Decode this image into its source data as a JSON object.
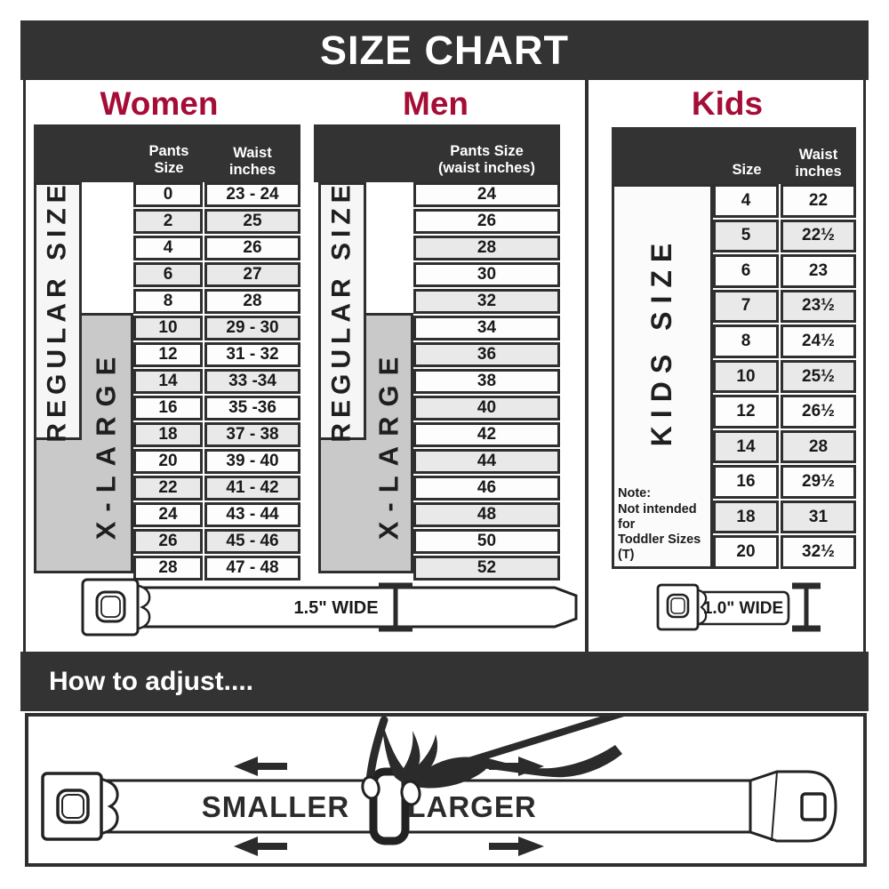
{
  "title": "SIZE CHART",
  "colors": {
    "accent": "#a50d36",
    "charcoal": "#333333",
    "shaded_row": "#e9e9e9",
    "xlarge_gray": "#c9c9c9"
  },
  "women": {
    "heading": "Women",
    "size_header": "Pants Size",
    "waist_header_line1": "Waist",
    "waist_header_line2": "inches",
    "regular_label": "REGULAR SIZE",
    "xlarge_label": "X-LARGE",
    "rows": [
      [
        "0",
        "23 - 24"
      ],
      [
        "2",
        "25"
      ],
      [
        "4",
        "26"
      ],
      [
        "6",
        "27"
      ],
      [
        "8",
        "28"
      ],
      [
        "10",
        "29 - 30"
      ],
      [
        "12",
        "31 - 32"
      ],
      [
        "14",
        "33 -34"
      ],
      [
        "16",
        "35 -36"
      ],
      [
        "18",
        "37 - 38"
      ],
      [
        "20",
        "39 - 40"
      ],
      [
        "22",
        "41 - 42"
      ],
      [
        "24",
        "43 - 44"
      ],
      [
        "26",
        "45 - 46"
      ],
      [
        "28",
        "47 - 48"
      ]
    ]
  },
  "men": {
    "heading": "Men",
    "col_header_line1": "Pants Size",
    "col_header_line2": "(waist inches)",
    "regular_label": "REGULAR SIZE",
    "xlarge_label": "X-LARGE",
    "rows": [
      "24",
      "26",
      "28",
      "30",
      "32",
      "34",
      "36",
      "38",
      "40",
      "42",
      "44",
      "46",
      "48",
      "50",
      "52"
    ]
  },
  "kids": {
    "heading": "Kids",
    "size_header": "Size",
    "waist_header_line1": "Waist",
    "waist_header_line2": "inches",
    "label": "KIDS SIZE",
    "note_line1": "Note:",
    "note_line2": "Not intended for",
    "note_line3": "Toddler Sizes (T)",
    "rows": [
      [
        "4",
        "22"
      ],
      [
        "5",
        "22½"
      ],
      [
        "6",
        "23"
      ],
      [
        "7",
        "23½"
      ],
      [
        "8",
        "24½"
      ],
      [
        "10",
        "25½"
      ],
      [
        "12",
        "26½"
      ],
      [
        "14",
        "28"
      ],
      [
        "16",
        "29½"
      ],
      [
        "18",
        "31"
      ],
      [
        "20",
        "32½"
      ]
    ]
  },
  "belts": {
    "adult_label": "1.5\" WIDE",
    "kids_label": "1.0\" WIDE"
  },
  "adjust": {
    "heading": "How to adjust....",
    "smaller": "SMALLER",
    "larger": "LARGER"
  }
}
